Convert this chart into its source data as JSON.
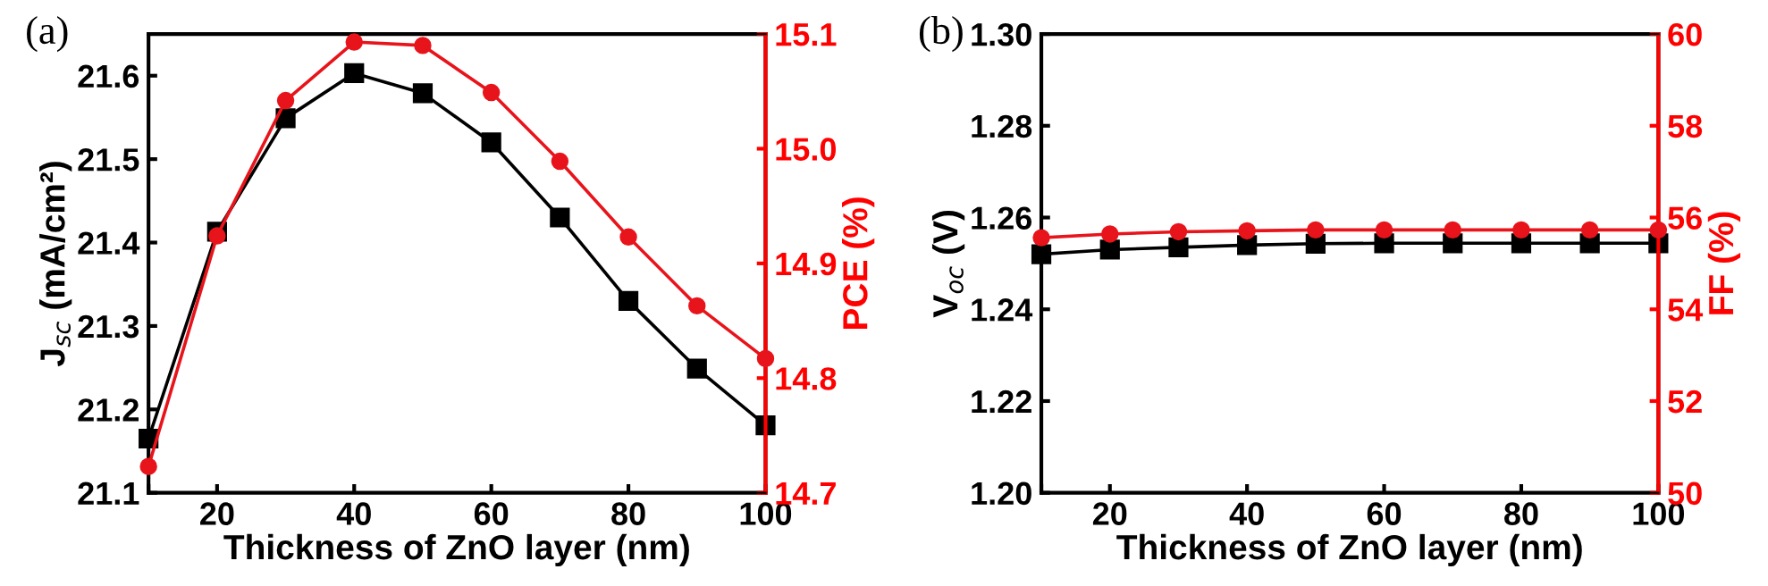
{
  "chart_data": [
    {
      "type": "line",
      "title": "(a)",
      "xlabel": "Thickness of ZnO layer (nm)",
      "ylabel": "J$_{sc}$ (mA/cm²)",
      "y2label": "PCE (%)",
      "x": [
        10,
        20,
        30,
        40,
        50,
        60,
        70,
        80,
        90,
        100
      ],
      "xlim": [
        10,
        100
      ],
      "xticks": [
        {
          "value": 10,
          "label": null
        },
        20,
        40,
        60,
        80,
        100
      ],
      "ylim": [
        21.1,
        21.65
      ],
      "yticks": [
        21.1,
        21.2,
        21.3,
        21.4,
        21.5,
        21.6
      ],
      "y2lim": [
        14.7,
        15.1
      ],
      "y2ticks": [
        14.7,
        14.8,
        14.9,
        {
          "value": 15.0,
          "label": "15.0"
        },
        15.1
      ],
      "series": [
        {
          "color": "#000000",
          "marker": "square",
          "values": [
            21.165,
            21.413,
            21.549,
            21.603,
            21.579,
            21.52,
            21.43,
            21.33,
            21.249,
            21.181
          ]
        },
        {
          "color": "#e8141b",
          "marker": "circle",
          "axis": "y2",
          "values": [
            14.723,
            14.924,
            15.042,
            15.093,
            15.09,
            15.049,
            14.989,
            14.923,
            14.863,
            14.817
          ]
        }
      ],
      "grid": false,
      "legend": false,
      "line_style": "solid"
    },
    {
      "type": "line",
      "title": "(b)",
      "xlabel": "Thickness of ZnO layer (nm)",
      "ylabel": "V$_{oc}$ (V)",
      "y2label": "FF (%)",
      "x": [
        10,
        20,
        30,
        40,
        50,
        60,
        70,
        80,
        90,
        100
      ],
      "xlim": [
        10,
        100
      ],
      "xticks": [
        {
          "value": 10,
          "label": null
        },
        20,
        40,
        60,
        80,
        100
      ],
      "ylim": [
        1.2,
        1.3
      ],
      "yticks": [
        {
          "value": 1.2,
          "label": "1.20"
        },
        {
          "value": 1.22,
          "label": "1.22"
        },
        {
          "value": 1.24,
          "label": "1.24"
        },
        {
          "value": 1.26,
          "label": "1.26"
        },
        {
          "value": 1.28,
          "label": "1.28"
        },
        {
          "value": 1.3,
          "label": "1.30"
        }
      ],
      "y2lim": [
        50,
        60
      ],
      "y2ticks": [
        50,
        52,
        54,
        56,
        58,
        60
      ],
      "series": [
        {
          "color": "#000000",
          "marker": "square",
          "values": [
            1.252,
            1.253,
            1.2535,
            1.254,
            1.2543,
            1.2544,
            1.2544,
            1.2544,
            1.2544,
            1.2544
          ]
        },
        {
          "color": "#e8141b",
          "marker": "circle",
          "axis": "y2",
          "values": [
            55.56,
            55.64,
            55.69,
            55.71,
            55.73,
            55.73,
            55.73,
            55.73,
            55.73,
            55.73
          ]
        }
      ],
      "grid": false,
      "legend": false,
      "line_style": "solid"
    }
  ]
}
